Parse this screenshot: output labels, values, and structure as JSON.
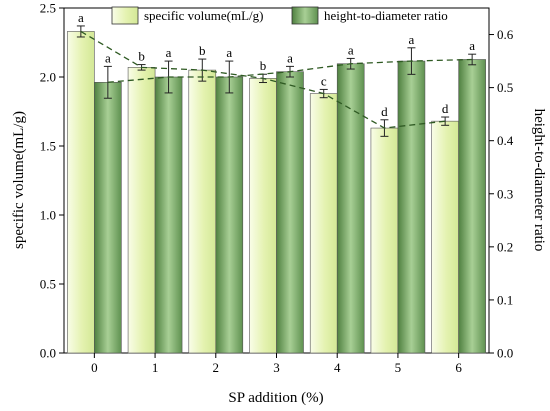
{
  "chart_data": {
    "type": "bar",
    "categories": [
      "0",
      "1",
      "2",
      "3",
      "4",
      "5",
      "6"
    ],
    "xlabel": "SP addition (%)",
    "ylabel": "specific volume(mL/g)",
    "ylabel_right": "height-to-diameter ratio",
    "ylim": [
      0,
      2.5
    ],
    "ylim_right": [
      0,
      0.65
    ],
    "yticks": [
      "0.0",
      "0.5",
      "1.0",
      "1.5",
      "2.0",
      "2.5"
    ],
    "yticks_right": [
      "0.0",
      "0.1",
      "0.2",
      "0.3",
      "0.4",
      "0.5",
      "0.6"
    ],
    "legend_position": "top",
    "series": [
      {
        "name": "specific volume(mL/g)",
        "axis": "left",
        "values": [
          2.33,
          2.07,
          2.05,
          1.99,
          1.88,
          1.63,
          1.68
        ],
        "errors": [
          0.04,
          0.02,
          0.08,
          0.03,
          0.03,
          0.06,
          0.03
        ],
        "labels": [
          "a",
          "b",
          "b",
          "b",
          "c",
          "d",
          "d"
        ],
        "color": "#e8f3b8"
      },
      {
        "name": "height-to-diameter ratio",
        "axis": "right",
        "values": [
          0.51,
          0.52,
          0.52,
          0.53,
          0.545,
          0.55,
          0.553
        ],
        "errors": [
          0.03,
          0.03,
          0.03,
          0.01,
          0.01,
          0.025,
          0.01
        ],
        "labels": [
          "a",
          "a",
          "a",
          "a",
          "a",
          "a",
          "a"
        ],
        "color": "#6f9a5a"
      }
    ]
  }
}
